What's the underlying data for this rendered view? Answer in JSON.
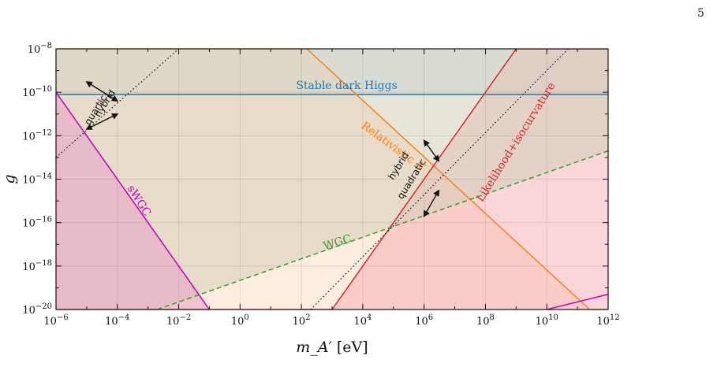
{
  "page": {
    "page_number": "5"
  },
  "chart_data": {
    "type": "area",
    "title": "",
    "xlabel": "m_A′ [eV]",
    "ylabel": "g",
    "xscale": "log",
    "yscale": "log",
    "xlim": [
      1e-06,
      1000000000000.0
    ],
    "ylim": [
      1e-20,
      1e-08
    ],
    "grid": true,
    "x_ticks": [
      {
        "value": 1e-06,
        "base": "10",
        "exp": "−6"
      },
      {
        "value": 0.0001,
        "base": "10",
        "exp": "−4"
      },
      {
        "value": 0.01,
        "base": "10",
        "exp": "−2"
      },
      {
        "value": 1.0,
        "base": "10",
        "exp": "0"
      },
      {
        "value": 100.0,
        "base": "10",
        "exp": "2"
      },
      {
        "value": 10000.0,
        "base": "10",
        "exp": "4"
      },
      {
        "value": 1000000.0,
        "base": "10",
        "exp": "6"
      },
      {
        "value": 100000000.0,
        "base": "10",
        "exp": "8"
      },
      {
        "value": 10000000000.0,
        "base": "10",
        "exp": "10"
      },
      {
        "value": 1000000000000.0,
        "base": "10",
        "exp": "12"
      }
    ],
    "y_ticks": [
      {
        "value": 1e-08,
        "base": "10",
        "exp": "−8"
      },
      {
        "value": 1e-10,
        "base": "10",
        "exp": "−10"
      },
      {
        "value": 1e-12,
        "base": "10",
        "exp": "−12"
      },
      {
        "value": 1e-14,
        "base": "10",
        "exp": "−14"
      },
      {
        "value": 1e-16,
        "base": "10",
        "exp": "−16"
      },
      {
        "value": 1e-18,
        "base": "10",
        "exp": "−18"
      },
      {
        "value": 1e-20,
        "base": "10",
        "exp": "−20"
      }
    ],
    "series": [
      {
        "name": "Stable dark Higgs",
        "kind": "band-above",
        "line": [
          [
            1e-06,
            8e-11
          ],
          [
            1000000000000.0,
            8e-11
          ]
        ],
        "fill_color": "#c3d9ea",
        "line_color": "#1f77b4",
        "line_style": "solid"
      },
      {
        "name": "Relativistic A′",
        "kind": "region-below",
        "line": [
          [
            1e-06,
            1e-08
          ],
          [
            150.0,
            1e-08
          ],
          [
            250000000000.0,
            1e-20
          ],
          [
            1000000000000.0,
            1e-20
          ]
        ],
        "fill_color": "#fddcc2",
        "line_color": "#ff7f0e",
        "line_style": "solid"
      },
      {
        "name": "Likelihood+isocurvature",
        "kind": "region-right",
        "line": [
          [
            1e-06,
            1e-20
          ],
          [
            1000.0,
            1e-20
          ],
          [
            1000000000.0,
            1e-08
          ],
          [
            1000000000000.0,
            1e-08
          ]
        ],
        "fill_color": "#f5b5b8",
        "line_color": "#d62728",
        "line_style": "solid"
      },
      {
        "name": "WGC",
        "kind": "region-above",
        "line": [
          [
            0.002,
            1e-20
          ],
          [
            1000000000000.0,
            2e-13
          ]
        ],
        "fill_color": "#d4cfb8",
        "line_color": "#2ca02c",
        "line_style": "dashed"
      },
      {
        "name": "sWGC",
        "kind": "region-below",
        "line": [
          [
            1e-06,
            1e-10
          ],
          [
            0.1,
            1e-20
          ]
        ],
        "fill_color": "#e9a0c6",
        "line_color": "#bf00bf",
        "line_style": "solid"
      },
      {
        "name": "",
        "kind": "line-only",
        "line": [
          [
            10000000000.0,
            1e-20
          ],
          [
            1000000000000.0,
            5e-20
          ]
        ],
        "fill_color": "",
        "line_color": "#bf00bf",
        "line_style": "solid"
      },
      {
        "name": "",
        "kind": "line-only",
        "line": [
          [
            1e-06,
            1e-13
          ],
          [
            0.01,
            1e-08
          ]
        ],
        "fill_color": "",
        "line_color": "#111111",
        "line_style": "dotted"
      },
      {
        "name": "",
        "kind": "line-only",
        "line": [
          [
            200.0,
            1e-20
          ],
          [
            50000000000.0,
            1e-08
          ]
        ],
        "fill_color": "",
        "line_color": "#111111",
        "line_style": "dotted"
      }
    ],
    "annotations": [
      {
        "text": "Stable dark Higgs",
        "color": "#1f77b4"
      },
      {
        "text": "Relativistic A′",
        "color": "#ff7f0e"
      },
      {
        "text": "Likelihood+isocurvature",
        "color": "#d62728"
      },
      {
        "text": "WGC",
        "color": "#2ca02c"
      },
      {
        "text": "sWGC",
        "color": "#bf00bf"
      },
      {
        "text": "quartic",
        "color": "#111111"
      },
      {
        "text": "hybrid",
        "color": "#111111"
      },
      {
        "text": "hybrid",
        "color": "#111111"
      },
      {
        "text": "quadratic",
        "color": "#111111"
      }
    ]
  }
}
